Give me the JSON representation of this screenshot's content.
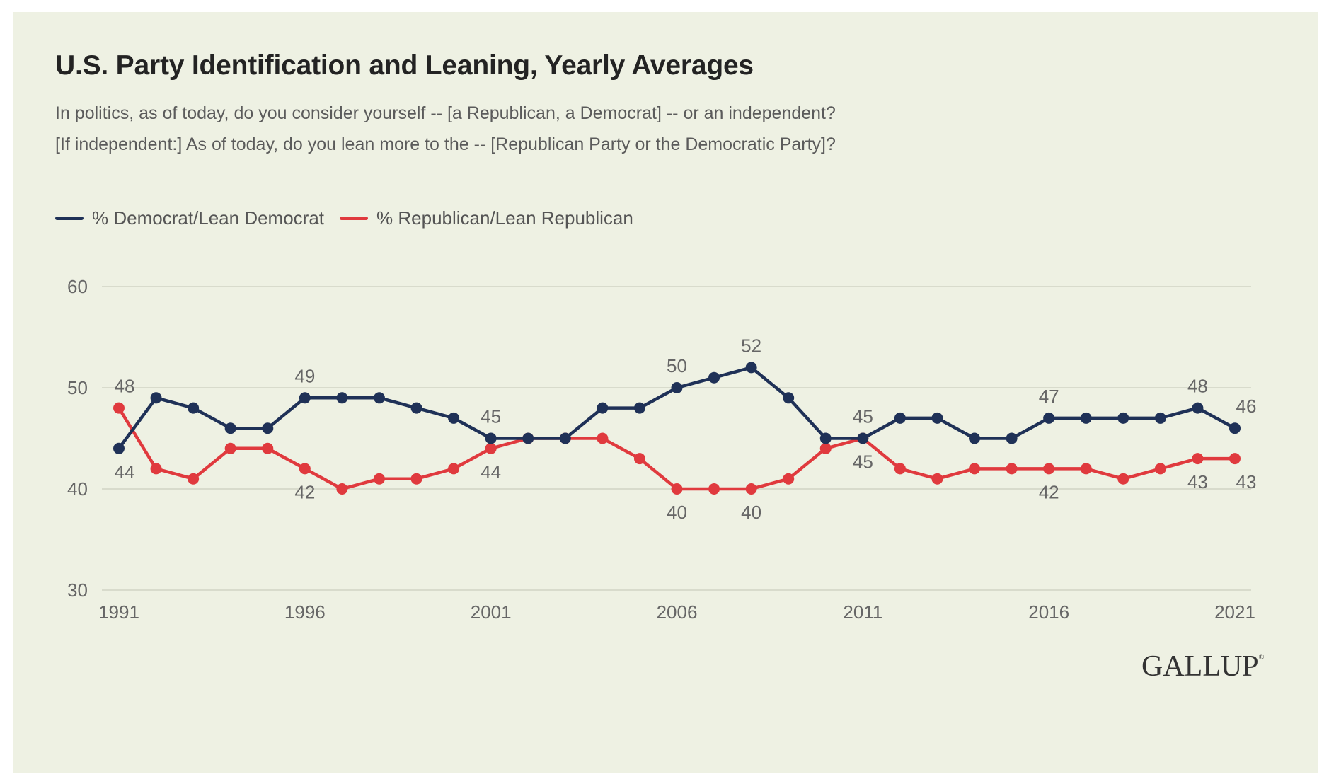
{
  "title": "U.S. Party Identification and Leaning, Yearly Averages",
  "subtitle": [
    "In politics, as of today, do you consider yourself -- [a Republican, a Democrat] -- or an independent?",
    "[If independent:] As of today, do you lean more to the -- [Republican Party or the Democratic Party]?"
  ],
  "legend": [
    {
      "label": "% Democrat/Lean Democrat",
      "color": "#1f3157"
    },
    {
      "label": "% Republican/Lean Republican",
      "color": "#e03a3e"
    }
  ],
  "branding": {
    "logo": "GALLUP",
    "mark": "®"
  },
  "colors": {
    "background": "#eef1e3",
    "grid": "#d8dbcc",
    "democrat": "#1f3157",
    "republican": "#e03a3e"
  },
  "chart_data": {
    "type": "line",
    "x": [
      1991,
      1992,
      1993,
      1994,
      1995,
      1996,
      1997,
      1998,
      1999,
      2000,
      2001,
      2002,
      2003,
      2004,
      2005,
      2006,
      2007,
      2008,
      2009,
      2010,
      2011,
      2012,
      2013,
      2014,
      2015,
      2016,
      2017,
      2018,
      2019,
      2020,
      2021
    ],
    "series": [
      {
        "name": "% Democrat/Lean Democrat",
        "values": [
          44,
          49,
          48,
          46,
          46,
          49,
          49,
          49,
          48,
          47,
          45,
          45,
          45,
          48,
          48,
          50,
          51,
          52,
          49,
          45,
          45,
          47,
          47,
          45,
          45,
          47,
          47,
          47,
          47,
          48,
          46
        ]
      },
      {
        "name": "% Republican/Lean Republican",
        "values": [
          48,
          42,
          41,
          44,
          44,
          42,
          40,
          41,
          41,
          42,
          44,
          45,
          45,
          45,
          43,
          40,
          40,
          40,
          41,
          44,
          45,
          42,
          41,
          42,
          42,
          42,
          42,
          41,
          42,
          43,
          43
        ]
      }
    ],
    "data_labels": {
      "democrat": [
        {
          "x": 1991,
          "text": "44"
        },
        {
          "x": 1996,
          "text": "49"
        },
        {
          "x": 2001,
          "text": "45"
        },
        {
          "x": 2006,
          "text": "50"
        },
        {
          "x": 2008,
          "text": "52"
        },
        {
          "x": 2011,
          "text": "45"
        },
        {
          "x": 2016,
          "text": "47"
        },
        {
          "x": 2020,
          "text": "48"
        },
        {
          "x": 2021,
          "text": "46"
        }
      ],
      "republican": [
        {
          "x": 1991,
          "text": "48"
        },
        {
          "x": 1996,
          "text": "42"
        },
        {
          "x": 2001,
          "text": "44"
        },
        {
          "x": 2006,
          "text": "40"
        },
        {
          "x": 2008,
          "text": "40"
        },
        {
          "x": 2011,
          "text": "45"
        },
        {
          "x": 2016,
          "text": "42"
        },
        {
          "x": 2020,
          "text": "43"
        },
        {
          "x": 2021,
          "text": "43"
        }
      ]
    },
    "x_ticks": [
      1991,
      1996,
      2001,
      2006,
      2011,
      2016,
      2021
    ],
    "y_ticks": [
      30,
      40,
      50,
      60
    ],
    "ylim": [
      30,
      60
    ],
    "xlim": [
      1991,
      2021
    ],
    "grid": true,
    "legend_position": "top-left",
    "xlabel": "",
    "ylabel": ""
  }
}
